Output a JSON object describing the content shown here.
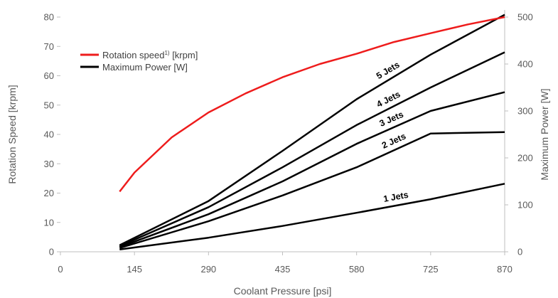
{
  "chart_data": {
    "type": "line",
    "title": "",
    "xlabel": "Coolant Pressure [psi]",
    "ylabel_left": "Rotation Speed [krpm]",
    "ylabel_right": "Maximum Power [W]",
    "xlim": [
      0,
      870
    ],
    "ylim_left": [
      0,
      80
    ],
    "ylim_right": [
      0,
      500
    ],
    "x_ticks": [
      0,
      145,
      290,
      435,
      580,
      725,
      870
    ],
    "y_left_ticks": [
      0,
      10,
      20,
      30,
      40,
      50,
      60,
      70,
      80
    ],
    "y_right_ticks": [
      0,
      100,
      200,
      300,
      400,
      500
    ],
    "legend": {
      "position": "top-left",
      "entries": [
        {
          "label": "Rotation speed",
          "sup": "1)",
          "unit": " [krpm]",
          "color": "#ee1c1c"
        },
        {
          "label": "Maximum Power  [W]",
          "sup": "",
          "unit": "",
          "color": "#000000"
        }
      ]
    },
    "speed_series": {
      "name": "Rotation speed",
      "axis": "left",
      "color": "#ee1c1c",
      "x": [
        116,
        145,
        218,
        290,
        363,
        435,
        508,
        580,
        653,
        725,
        798,
        870
      ],
      "y": [
        20.5,
        27,
        39,
        47.5,
        54,
        59.5,
        64,
        67.5,
        71.5,
        74.5,
        77.5,
        80
      ]
    },
    "power_series": [
      {
        "name": "1 Jets",
        "label": "1 Jets",
        "axis": "right",
        "color": "#000000",
        "x": [
          116,
          290,
          435,
          580,
          725,
          870
        ],
        "y": [
          5,
          30,
          55,
          83,
          112,
          145
        ]
      },
      {
        "name": "2 Jets",
        "label": "2 Jets",
        "axis": "right",
        "color": "#000000",
        "x": [
          116,
          290,
          435,
          580,
          725,
          870
        ],
        "y": [
          8,
          65,
          120,
          180,
          252,
          255
        ]
      },
      {
        "name": "3 Jets",
        "label": "3 Jets",
        "axis": "right",
        "color": "#000000",
        "x": [
          116,
          290,
          435,
          580,
          725,
          870
        ],
        "y": [
          10,
          80,
          150,
          230,
          300,
          340
        ]
      },
      {
        "name": "4 Jets",
        "label": "4 Jets",
        "axis": "right",
        "color": "#000000",
        "x": [
          116,
          290,
          435,
          580,
          725,
          870
        ],
        "y": [
          12,
          95,
          180,
          270,
          350,
          425
        ]
      },
      {
        "name": "5 Jets",
        "label": "5 Jets",
        "axis": "right",
        "color": "#000000",
        "x": [
          116,
          290,
          435,
          580,
          725,
          870
        ],
        "y": [
          14,
          108,
          215,
          325,
          420,
          505
        ]
      }
    ],
    "grid": false
  }
}
